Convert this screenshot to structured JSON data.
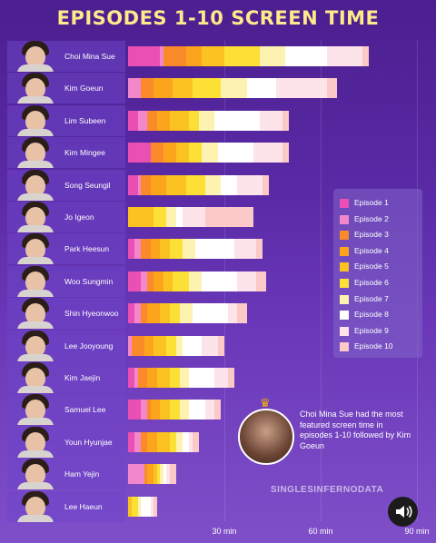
{
  "chart_data": {
    "type": "bar",
    "orientation": "horizontal",
    "stacked": true,
    "title": "EPISODES 1-10 SCREEN TIME",
    "xlabel": "",
    "ylabel": "",
    "xlim": [
      0,
      90
    ],
    "x_ticks": [
      30,
      60,
      90
    ],
    "x_tick_labels": [
      "30 min",
      "60 min",
      "90 min"
    ],
    "grid": true,
    "legend_position": "right",
    "categories": [
      "Choi Mina Sue",
      "Kim Goeun",
      "Lim Subeen",
      "Kim Mingee",
      "Song Seungil",
      "Jo Igeon",
      "Park Heesun",
      "Woo Sungmin",
      "Shin Hyeonwoo",
      "Lee Jooyoung",
      "Kim Jaejin",
      "Samuel Lee",
      "Youn Hyunjae",
      "Ham Yejin",
      "Lee Haeun"
    ],
    "series": [
      {
        "name": "Episode 1",
        "color": "#ea4fb4",
        "values": [
          10,
          0,
          3,
          7,
          3,
          0,
          2,
          4,
          2,
          0,
          2,
          4,
          2,
          0,
          0
        ]
      },
      {
        "name": "Episode 2",
        "color": "#f387cc",
        "values": [
          1,
          4,
          3,
          0,
          1,
          0,
          2,
          2,
          2,
          1,
          1,
          2,
          2,
          5,
          0
        ]
      },
      {
        "name": "Episode 3",
        "color": "#fb8a2a",
        "values": [
          7,
          4,
          3,
          4,
          3,
          0,
          3,
          2,
          2,
          4,
          3,
          1,
          2,
          1,
          0
        ]
      },
      {
        "name": "Episode 4",
        "color": "#fca51c",
        "values": [
          5,
          6,
          4,
          4,
          5,
          0,
          3,
          3,
          4,
          3,
          3,
          3,
          3,
          2,
          0
        ]
      },
      {
        "name": "Episode 5",
        "color": "#fbc222",
        "values": [
          7,
          6,
          6,
          4,
          6,
          8,
          3,
          3,
          3,
          4,
          4,
          3,
          4,
          1,
          1
        ]
      },
      {
        "name": "Episode 6",
        "color": "#fde036",
        "values": [
          11,
          9,
          3,
          4,
          6,
          4,
          4,
          5,
          3,
          3,
          3,
          3,
          2,
          1,
          2
        ]
      },
      {
        "name": "Episode 7",
        "color": "#fdf2b0",
        "values": [
          8,
          8,
          5,
          5,
          5,
          3,
          4,
          4,
          4,
          2,
          3,
          3,
          2,
          1,
          1
        ]
      },
      {
        "name": "Episode 8",
        "color": "#ffffff",
        "values": [
          13,
          9,
          14,
          11,
          5,
          2,
          12,
          11,
          11,
          6,
          8,
          5,
          2,
          1,
          3
        ]
      },
      {
        "name": "Episode 9",
        "color": "#fde3ea",
        "values": [
          11,
          16,
          7,
          9,
          8,
          7,
          7,
          6,
          3,
          5,
          4,
          3,
          1,
          1,
          1
        ]
      },
      {
        "name": "Episode 10",
        "color": "#fbc9c7",
        "values": [
          2,
          3,
          2,
          2,
          2,
          15,
          2,
          3,
          3,
          2,
          2,
          2,
          2,
          2,
          1
        ]
      }
    ]
  },
  "annotation": {
    "crown_icon": "crown-icon",
    "avatar_icon": "person-photo",
    "text": "Choi Mina Sue had the most featured screen time in episodes 1-10 followed by Kim Goeun"
  },
  "watermark": "SINGLESINFERNODATA",
  "speaker_icon": "speaker-icon"
}
